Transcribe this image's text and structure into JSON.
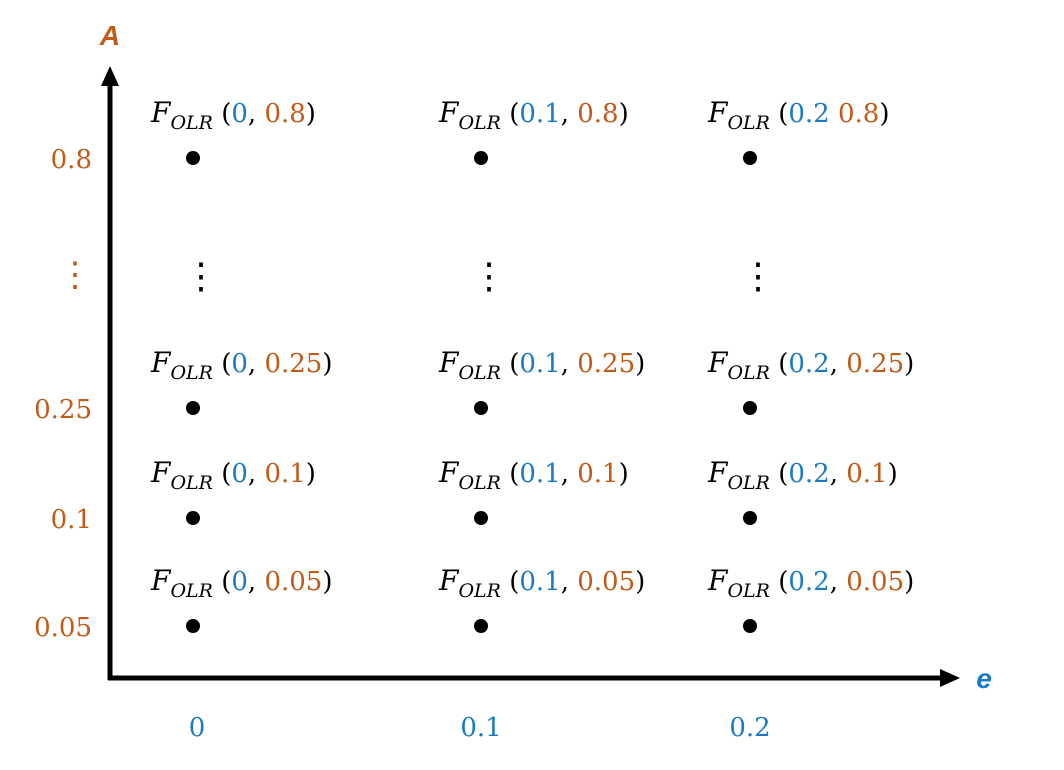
{
  "axes": {
    "x_label": "e",
    "y_label": "A",
    "x_ticks": [
      "0",
      "0.1",
      "0.2"
    ],
    "y_ticks": [
      "0.8",
      "⋮",
      "0.25",
      "0.1",
      "0.05"
    ]
  },
  "colors": {
    "e_value": "#1a7bc4",
    "a_value": "#c25a18",
    "text": "#000000"
  },
  "grid": {
    "function_symbol": "F",
    "function_subscript": "OLR",
    "gap_marker": "⋮",
    "rows": [
      {
        "a": "0.8",
        "cells": [
          {
            "e": "0",
            "sep": ",",
            "a": "0.8"
          },
          {
            "e": "0.1",
            "sep": ",",
            "a": "0.8"
          },
          {
            "e": "0.2",
            "sep": " ",
            "a": "0.8"
          }
        ]
      },
      {
        "a": "⋮",
        "gap": true,
        "cells": []
      },
      {
        "a": "0.25",
        "cells": [
          {
            "e": "0",
            "sep": ",",
            "a": "0.25"
          },
          {
            "e": "0.1",
            "sep": ",",
            "a": "0.25"
          },
          {
            "e": "0.2",
            "sep": ",",
            "a": "0.25"
          }
        ]
      },
      {
        "a": "0.1",
        "cells": [
          {
            "e": "0",
            "sep": ",",
            "a": "0.1"
          },
          {
            "e": "0.1",
            "sep": ",",
            "a": "0.1"
          },
          {
            "e": "0.2",
            "sep": ",",
            "a": "0.1"
          }
        ]
      },
      {
        "a": "0.05",
        "cells": [
          {
            "e": "0",
            "sep": ",",
            "a": "0.05"
          },
          {
            "e": "0.1",
            "sep": ",",
            "a": "0.05"
          },
          {
            "e": "0.2",
            "sep": ",",
            "a": "0.05"
          }
        ]
      }
    ]
  }
}
